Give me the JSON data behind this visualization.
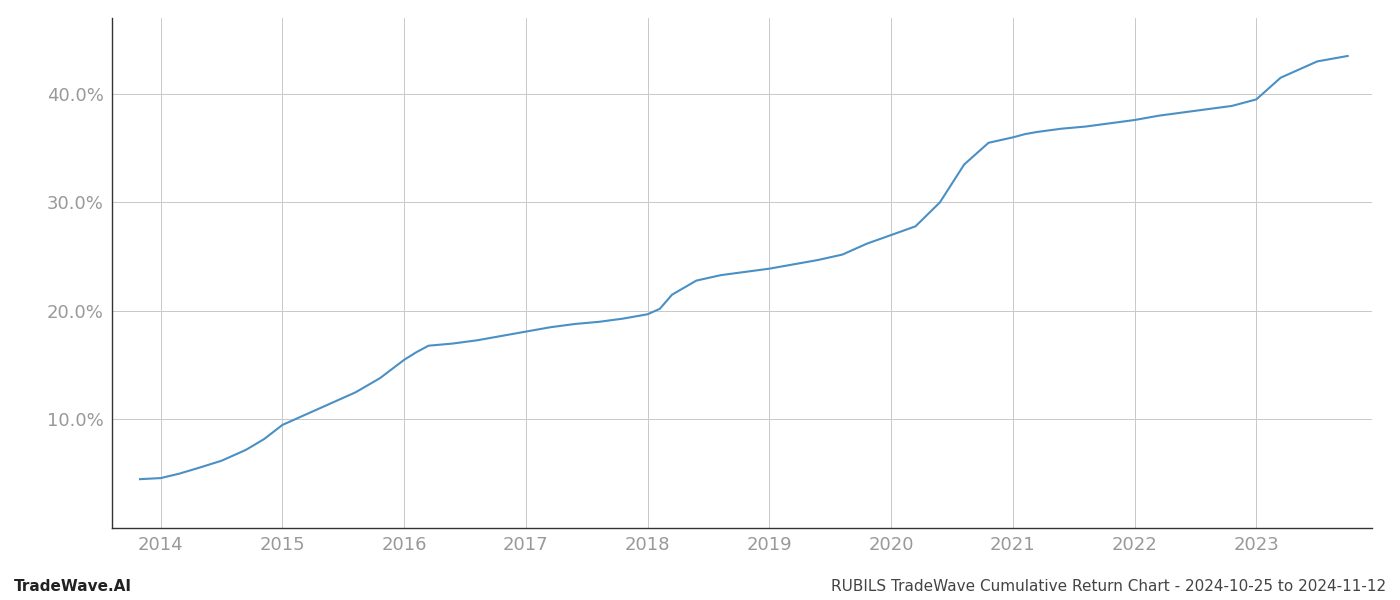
{
  "title": "RUBILS TradeWave Cumulative Return Chart - 2024-10-25 to 2024-11-12",
  "watermark": "TradeWave.AI",
  "line_color": "#4a90c4",
  "background_color": "#ffffff",
  "grid_color": "#c8c8c8",
  "x_values": [
    2013.83,
    2014.0,
    2014.15,
    2014.3,
    2014.5,
    2014.7,
    2014.85,
    2015.0,
    2015.2,
    2015.4,
    2015.6,
    2015.8,
    2016.0,
    2016.1,
    2016.2,
    2016.4,
    2016.6,
    2016.8,
    2017.0,
    2017.2,
    2017.4,
    2017.6,
    2017.8,
    2018.0,
    2018.1,
    2018.2,
    2018.4,
    2018.6,
    2018.8,
    2019.0,
    2019.2,
    2019.4,
    2019.6,
    2019.8,
    2020.0,
    2020.1,
    2020.15,
    2020.2,
    2020.4,
    2020.6,
    2020.8,
    2021.0,
    2021.1,
    2021.2,
    2021.4,
    2021.6,
    2021.8,
    2022.0,
    2022.2,
    2022.4,
    2022.6,
    2022.8,
    2023.0,
    2023.2,
    2023.5,
    2023.75
  ],
  "y_values": [
    4.5,
    4.6,
    5.0,
    5.5,
    6.2,
    7.2,
    8.2,
    9.5,
    10.5,
    11.5,
    12.5,
    13.8,
    15.5,
    16.2,
    16.8,
    17.0,
    17.3,
    17.7,
    18.1,
    18.5,
    18.8,
    19.0,
    19.3,
    19.7,
    20.2,
    21.5,
    22.8,
    23.3,
    23.6,
    23.9,
    24.3,
    24.7,
    25.2,
    26.2,
    27.0,
    27.4,
    27.6,
    27.8,
    30.0,
    33.5,
    35.5,
    36.0,
    36.3,
    36.5,
    36.8,
    37.0,
    37.3,
    37.6,
    38.0,
    38.3,
    38.6,
    38.9,
    39.5,
    41.5,
    43.0,
    43.5
  ],
  "xlim": [
    2013.6,
    2023.95
  ],
  "ylim": [
    0,
    47
  ],
  "yticks": [
    10.0,
    20.0,
    30.0,
    40.0
  ],
  "xticks": [
    2014,
    2015,
    2016,
    2017,
    2018,
    2019,
    2020,
    2021,
    2022,
    2023
  ],
  "tick_label_color": "#999999",
  "title_color": "#444444",
  "watermark_color": "#222222",
  "line_width": 1.5,
  "title_fontsize": 11,
  "tick_fontsize": 13,
  "watermark_fontsize": 11
}
